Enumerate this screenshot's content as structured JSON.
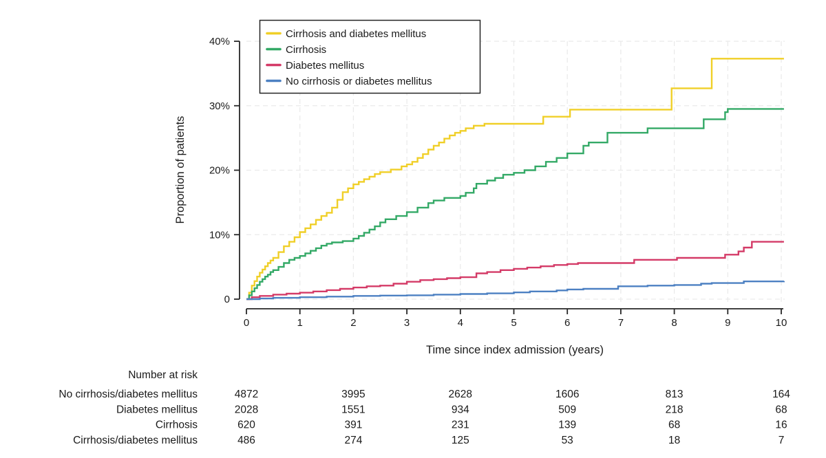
{
  "figure": {
    "background": "#ffffff",
    "axis_color": "#262626",
    "grid_color": "#eaeaea",
    "text_color": "#1a1a1a"
  },
  "axes": {
    "y": {
      "title": "Proportion of patients",
      "tick_labels": [
        "0",
        "10%",
        "20%",
        "30%",
        "40%"
      ],
      "tick_values": [
        0,
        10,
        20,
        30,
        40
      ],
      "range": [
        0,
        40
      ]
    },
    "x": {
      "title": "Time since index admission (years)",
      "tick_labels": [
        "0",
        "1",
        "2",
        "3",
        "4",
        "5",
        "6",
        "7",
        "8",
        "9",
        "10"
      ],
      "tick_values": [
        0,
        1,
        2,
        3,
        4,
        5,
        6,
        7,
        8,
        9,
        10
      ],
      "range": [
        0,
        10
      ]
    }
  },
  "legend": {
    "position": "top-left-inside",
    "border_color": "#222222",
    "items": [
      {
        "label": "Cirrhosis and diabetes mellitus",
        "color": "#F0CF27"
      },
      {
        "label": "Cirrhosis",
        "color": "#33A966"
      },
      {
        "label": "Diabetes mellitus",
        "color": "#D43A67"
      },
      {
        "label": "No cirrhosis or diabetes mellitus",
        "color": "#4C80C2"
      }
    ]
  },
  "chart_data": {
    "type": "line",
    "subtype": "kaplan-meier-cumulative-incidence",
    "step": "after",
    "title": "",
    "xlabel": "Time since index admission (years)",
    "ylabel": "Proportion of patients",
    "xlim": [
      0,
      10
    ],
    "ylim": [
      0,
      40
    ],
    "y_unit": "%",
    "grid": true,
    "series": [
      {
        "name": "Cirrhosis and diabetes mellitus",
        "color": "#F0CF27",
        "points": [
          [
            0,
            0
          ],
          [
            0.05,
            1.0
          ],
          [
            0.1,
            2.1
          ],
          [
            0.15,
            2.8
          ],
          [
            0.2,
            3.5
          ],
          [
            0.25,
            4.1
          ],
          [
            0.3,
            4.6
          ],
          [
            0.35,
            5.1
          ],
          [
            0.4,
            5.6
          ],
          [
            0.45,
            6.0
          ],
          [
            0.5,
            6.4
          ],
          [
            0.6,
            7.3
          ],
          [
            0.7,
            8.2
          ],
          [
            0.8,
            8.9
          ],
          [
            0.9,
            9.6
          ],
          [
            1.0,
            10.4
          ],
          [
            1.1,
            11.0
          ],
          [
            1.2,
            11.6
          ],
          [
            1.3,
            12.3
          ],
          [
            1.4,
            12.9
          ],
          [
            1.5,
            13.4
          ],
          [
            1.6,
            14.2
          ],
          [
            1.7,
            15.4
          ],
          [
            1.8,
            16.6
          ],
          [
            1.9,
            17.2
          ],
          [
            2.0,
            17.8
          ],
          [
            2.1,
            18.2
          ],
          [
            2.2,
            18.6
          ],
          [
            2.3,
            19.0
          ],
          [
            2.4,
            19.4
          ],
          [
            2.5,
            19.7
          ],
          [
            2.7,
            20.1
          ],
          [
            2.9,
            20.6
          ],
          [
            3.0,
            20.9
          ],
          [
            3.1,
            21.3
          ],
          [
            3.2,
            21.9
          ],
          [
            3.3,
            22.5
          ],
          [
            3.4,
            23.2
          ],
          [
            3.5,
            23.8
          ],
          [
            3.6,
            24.3
          ],
          [
            3.7,
            24.9
          ],
          [
            3.8,
            25.4
          ],
          [
            3.9,
            25.8
          ],
          [
            4.0,
            26.1
          ],
          [
            4.1,
            26.5
          ],
          [
            4.25,
            26.9
          ],
          [
            4.45,
            27.2
          ],
          [
            5.55,
            28.3
          ],
          [
            6.05,
            29.4
          ],
          [
            7.95,
            32.7
          ],
          [
            8.7,
            37.3
          ],
          [
            10.05,
            37.3
          ]
        ]
      },
      {
        "name": "Cirrhosis",
        "color": "#33A966",
        "points": [
          [
            0,
            0
          ],
          [
            0.05,
            0.6
          ],
          [
            0.1,
            1.2
          ],
          [
            0.15,
            1.7
          ],
          [
            0.2,
            2.2
          ],
          [
            0.25,
            2.7
          ],
          [
            0.3,
            3.1
          ],
          [
            0.35,
            3.5
          ],
          [
            0.4,
            3.8
          ],
          [
            0.45,
            4.2
          ],
          [
            0.5,
            4.5
          ],
          [
            0.6,
            5.0
          ],
          [
            0.7,
            5.6
          ],
          [
            0.8,
            6.1
          ],
          [
            0.9,
            6.4
          ],
          [
            1.0,
            6.7
          ],
          [
            1.1,
            7.1
          ],
          [
            1.2,
            7.5
          ],
          [
            1.3,
            7.9
          ],
          [
            1.4,
            8.3
          ],
          [
            1.5,
            8.6
          ],
          [
            1.6,
            8.8
          ],
          [
            1.8,
            9.0
          ],
          [
            2.0,
            9.4
          ],
          [
            2.1,
            9.8
          ],
          [
            2.2,
            10.3
          ],
          [
            2.3,
            10.8
          ],
          [
            2.4,
            11.3
          ],
          [
            2.5,
            11.9
          ],
          [
            2.6,
            12.4
          ],
          [
            2.8,
            12.9
          ],
          [
            3.0,
            13.5
          ],
          [
            3.2,
            14.2
          ],
          [
            3.4,
            14.9
          ],
          [
            3.5,
            15.3
          ],
          [
            3.7,
            15.7
          ],
          [
            4.0,
            16.0
          ],
          [
            4.1,
            16.5
          ],
          [
            4.25,
            17.2
          ],
          [
            4.3,
            17.9
          ],
          [
            4.5,
            18.4
          ],
          [
            4.65,
            18.8
          ],
          [
            4.8,
            19.3
          ],
          [
            5.0,
            19.6
          ],
          [
            5.2,
            20.0
          ],
          [
            5.4,
            20.6
          ],
          [
            5.6,
            21.3
          ],
          [
            5.8,
            21.9
          ],
          [
            6.0,
            22.6
          ],
          [
            6.3,
            23.8
          ],
          [
            6.4,
            24.3
          ],
          [
            6.75,
            25.8
          ],
          [
            7.5,
            26.5
          ],
          [
            8.55,
            27.9
          ],
          [
            8.95,
            29.0
          ],
          [
            9.0,
            29.5
          ],
          [
            10.05,
            29.5
          ]
        ]
      },
      {
        "name": "Diabetes mellitus",
        "color": "#D43A67",
        "points": [
          [
            0,
            0
          ],
          [
            0.1,
            0.3
          ],
          [
            0.25,
            0.5
          ],
          [
            0.5,
            0.7
          ],
          [
            0.75,
            0.85
          ],
          [
            1.0,
            1.0
          ],
          [
            1.25,
            1.2
          ],
          [
            1.5,
            1.4
          ],
          [
            1.75,
            1.6
          ],
          [
            2.0,
            1.8
          ],
          [
            2.25,
            2.0
          ],
          [
            2.5,
            2.1
          ],
          [
            2.75,
            2.4
          ],
          [
            3.0,
            2.7
          ],
          [
            3.25,
            2.95
          ],
          [
            3.5,
            3.1
          ],
          [
            3.75,
            3.25
          ],
          [
            4.0,
            3.4
          ],
          [
            4.3,
            4.0
          ],
          [
            4.5,
            4.2
          ],
          [
            4.75,
            4.5
          ],
          [
            5.0,
            4.7
          ],
          [
            5.25,
            4.9
          ],
          [
            5.5,
            5.1
          ],
          [
            5.75,
            5.3
          ],
          [
            6.0,
            5.45
          ],
          [
            6.2,
            5.6
          ],
          [
            7.25,
            6.1
          ],
          [
            8.05,
            6.4
          ],
          [
            8.95,
            6.9
          ],
          [
            9.2,
            7.4
          ],
          [
            9.3,
            8.0
          ],
          [
            9.45,
            8.9
          ],
          [
            10.05,
            8.9
          ]
        ]
      },
      {
        "name": "No cirrhosis or diabetes mellitus",
        "color": "#4C80C2",
        "points": [
          [
            0,
            0
          ],
          [
            0.25,
            0.1
          ],
          [
            0.5,
            0.2
          ],
          [
            1.0,
            0.3
          ],
          [
            1.5,
            0.4
          ],
          [
            2.0,
            0.5
          ],
          [
            2.5,
            0.55
          ],
          [
            3.0,
            0.6
          ],
          [
            3.5,
            0.7
          ],
          [
            4.0,
            0.8
          ],
          [
            4.5,
            0.9
          ],
          [
            5.0,
            1.05
          ],
          [
            5.3,
            1.2
          ],
          [
            5.8,
            1.35
          ],
          [
            6.0,
            1.5
          ],
          [
            6.3,
            1.6
          ],
          [
            6.95,
            2.0
          ],
          [
            7.5,
            2.1
          ],
          [
            8.0,
            2.2
          ],
          [
            8.5,
            2.4
          ],
          [
            8.7,
            2.5
          ],
          [
            9.3,
            2.75
          ],
          [
            10.05,
            2.8
          ]
        ]
      }
    ]
  },
  "risk_table": {
    "header": "Number at risk",
    "time_points": [
      0,
      2,
      4,
      6,
      8,
      10
    ],
    "rows": [
      {
        "label": "No cirrhosis/diabetes mellitus",
        "values": [
          "4872",
          "3995",
          "2628",
          "1606",
          "813",
          "164"
        ]
      },
      {
        "label": "Diabetes mellitus",
        "values": [
          "2028",
          "1551",
          "934",
          "509",
          "218",
          "68"
        ]
      },
      {
        "label": "Cirrhosis",
        "values": [
          "620",
          "391",
          "231",
          "139",
          "68",
          "16"
        ]
      },
      {
        "label": "Cirrhosis/diabetes mellitus",
        "values": [
          "486",
          "274",
          "125",
          "53",
          "18",
          "7"
        ]
      }
    ]
  }
}
